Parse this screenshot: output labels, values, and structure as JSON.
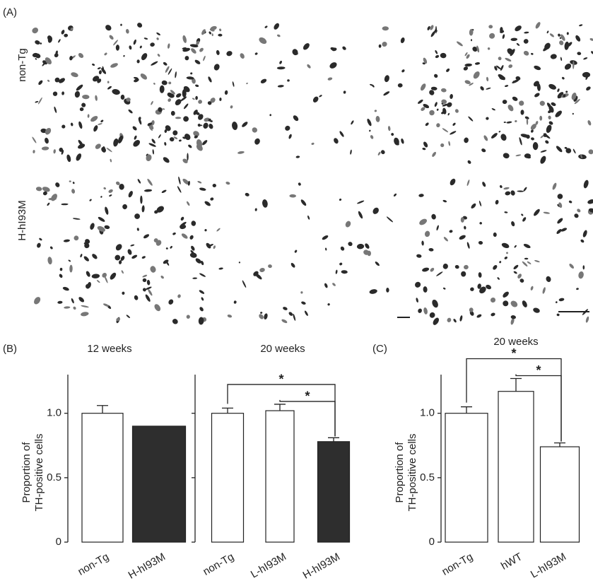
{
  "panel_labels": [
    "(A)",
    "(B)",
    "(C)"
  ],
  "row_labels": [
    "non-Tg",
    "H-hI93M"
  ],
  "chart_data": [
    {
      "type": "bar",
      "title": "12 weeks",
      "y_label": [
        "Proportion of",
        "TH-positive cells"
      ],
      "categories": [
        "non-Tg",
        "H-hI93M"
      ],
      "values": [
        1.0,
        0.9
      ],
      "errors": [
        0.06,
        null
      ],
      "colors": [
        "#ffffff",
        "#2e2e2e"
      ],
      "ylim": [
        0,
        1.3
      ],
      "yticks": [
        0,
        0.5,
        {
          "value": 1,
          "label": "1.0"
        }
      ]
    },
    {
      "type": "bar",
      "title": "20 weeks",
      "categories": [
        "non-Tg",
        "L-hI93M",
        "H-hI93M"
      ],
      "values": [
        1.0,
        1.02,
        0.78
      ],
      "errors": [
        0.04,
        0.05,
        0.03
      ],
      "colors": [
        "#ffffff",
        "#ffffff",
        "#2e2e2e"
      ],
      "ylim": [
        0,
        1.3
      ],
      "yticks": [
        0,
        0.5,
        1
      ],
      "annotations": [
        "*",
        "*"
      ]
    },
    {
      "type": "bar",
      "title": "20 weeks",
      "y_label": [
        "Proportion of",
        "TH-positive cells"
      ],
      "categories": [
        "non-Tg",
        "hWT",
        "L-hI93M"
      ],
      "values": [
        1.0,
        1.17,
        0.74
      ],
      "errors": [
        0.05,
        0.1,
        0.03
      ],
      "colors": [
        "#ffffff",
        "#ffffff",
        "#ffffff"
      ],
      "ylim": [
        0,
        1.3
      ],
      "yticks": [
        0,
        0.5,
        {
          "value": 1,
          "label": "1.0"
        }
      ],
      "annotations": [
        "*",
        "*"
      ]
    }
  ]
}
